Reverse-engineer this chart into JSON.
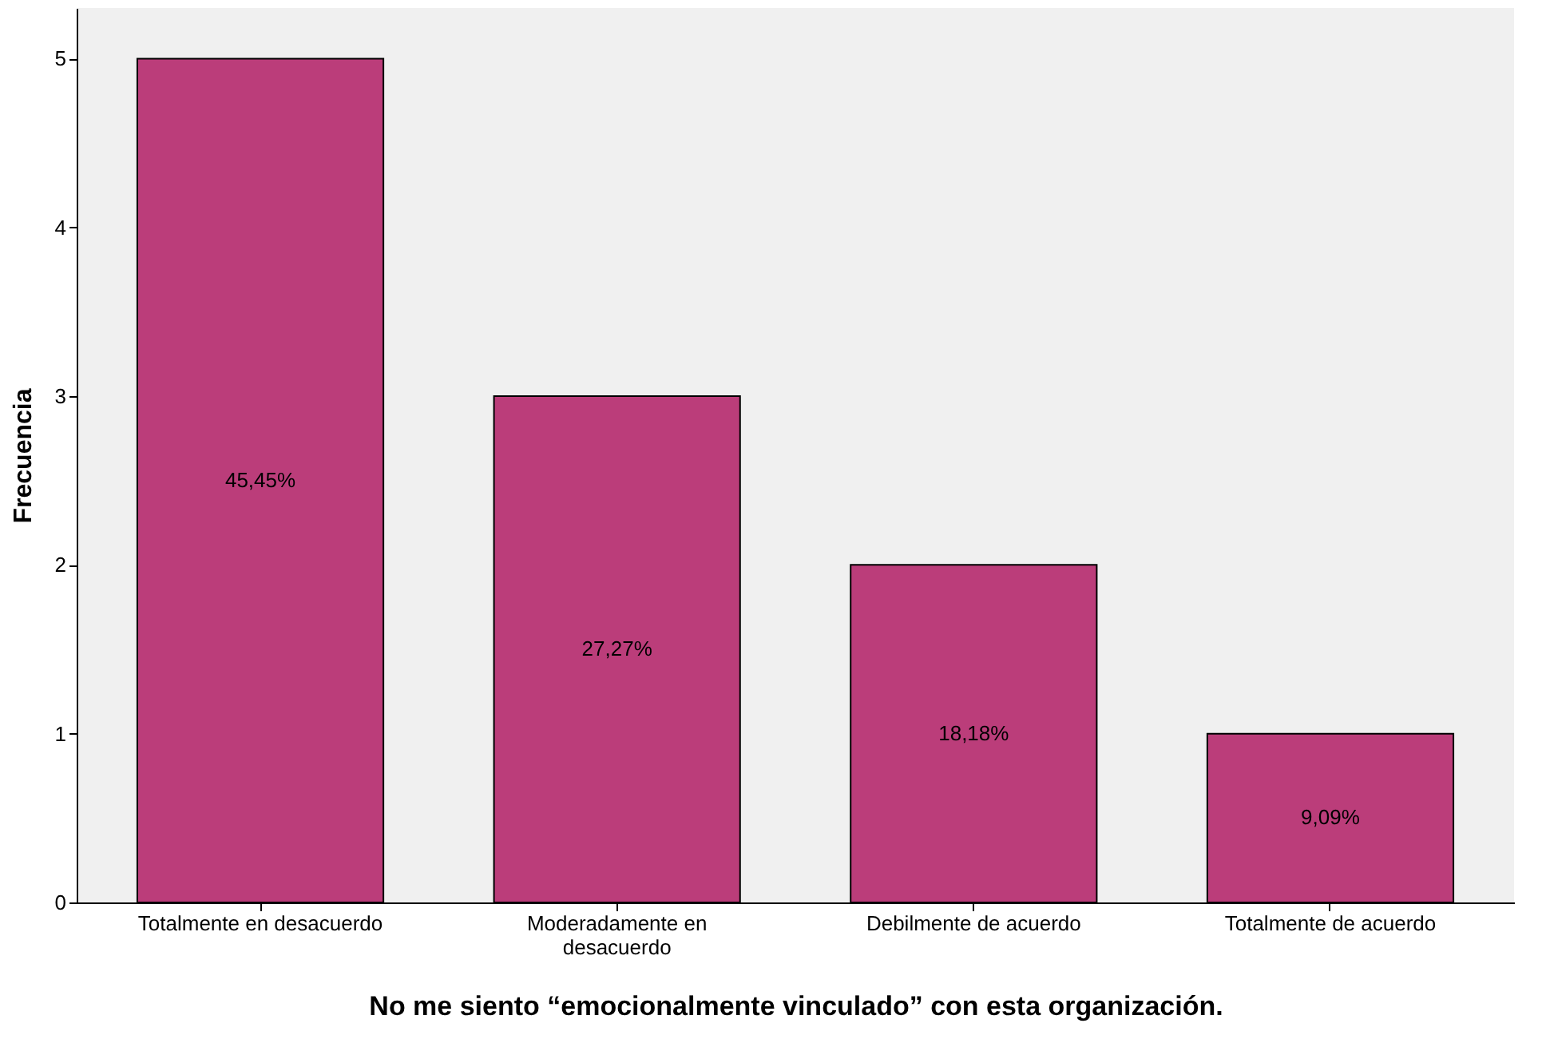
{
  "chart_data": {
    "type": "bar",
    "xlabel": "No me siento “emocionalmente vinculado” con esta organización.",
    "ylabel": "Frecuencia",
    "categories": [
      "Totalmente en desacuerdo",
      "Moderadamente en desacuerdo",
      "Debilmente de acuerdo",
      "Totalmente de acuerdo"
    ],
    "values": [
      5,
      3,
      2,
      1
    ],
    "annotations": [
      "45,45%",
      "27,27%",
      "18,18%",
      "9,09%"
    ],
    "color": "#bb3d7a",
    "ylim": [
      0,
      5.3
    ],
    "yticks": [
      0,
      1,
      2,
      3,
      4,
      5
    ],
    "grid": false
  }
}
